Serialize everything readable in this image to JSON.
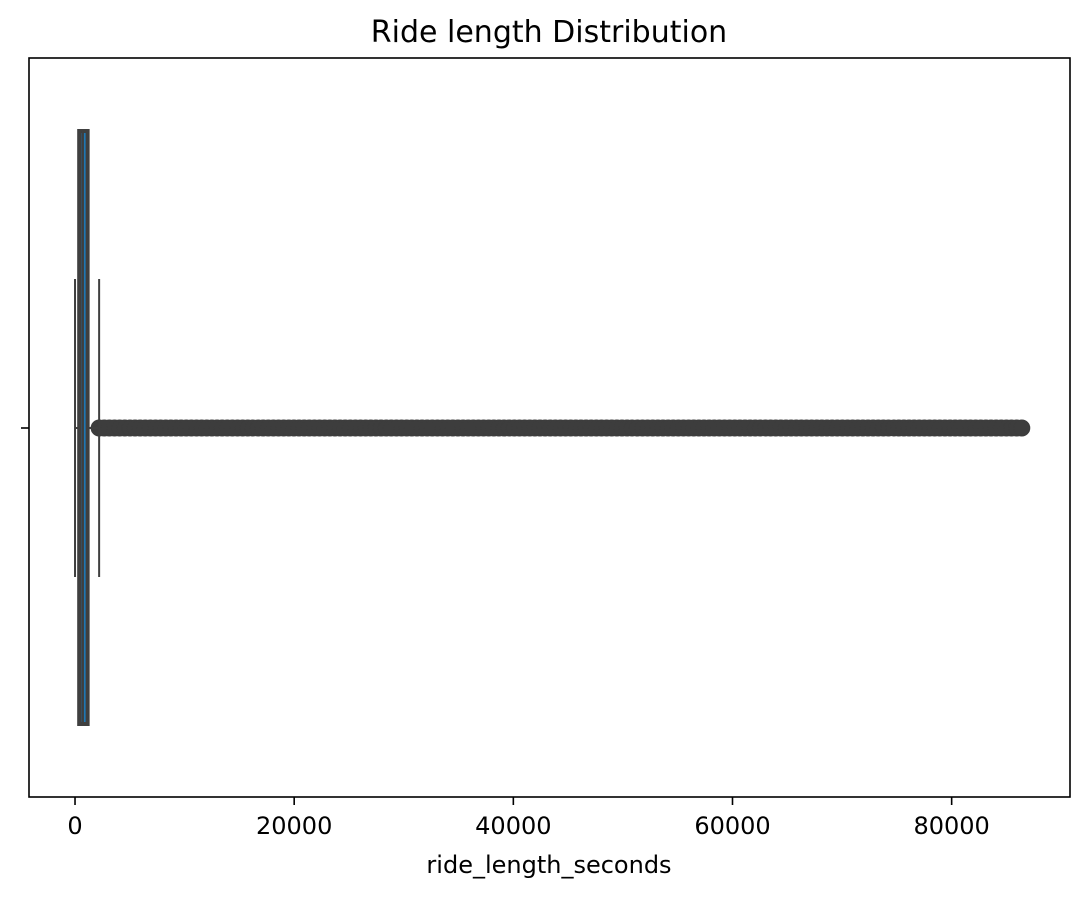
{
  "chart_data": {
    "type": "boxplot",
    "title": "Ride length Distribution",
    "xlabel": "ride_length_seconds",
    "ylabel": "",
    "xlim": [
      -4200,
      90800
    ],
    "x_ticks": [
      0,
      20000,
      40000,
      60000,
      80000
    ],
    "x_tick_labels": [
      "0",
      "20000",
      "40000",
      "60000",
      "80000"
    ],
    "orientation": "horizontal",
    "grid": false,
    "legend": "none",
    "box": {
      "whisker_low": 0,
      "q1": 380,
      "median": 700,
      "q3": 1150,
      "whisker_high": 2200
    },
    "outliers": {
      "min": 2200,
      "max": 86400,
      "dense": true
    },
    "colors": {
      "box_fill": "#1f77b4",
      "line": "#3f3f3f",
      "outlier": "#3d3d3d",
      "axes": "#000000"
    }
  }
}
